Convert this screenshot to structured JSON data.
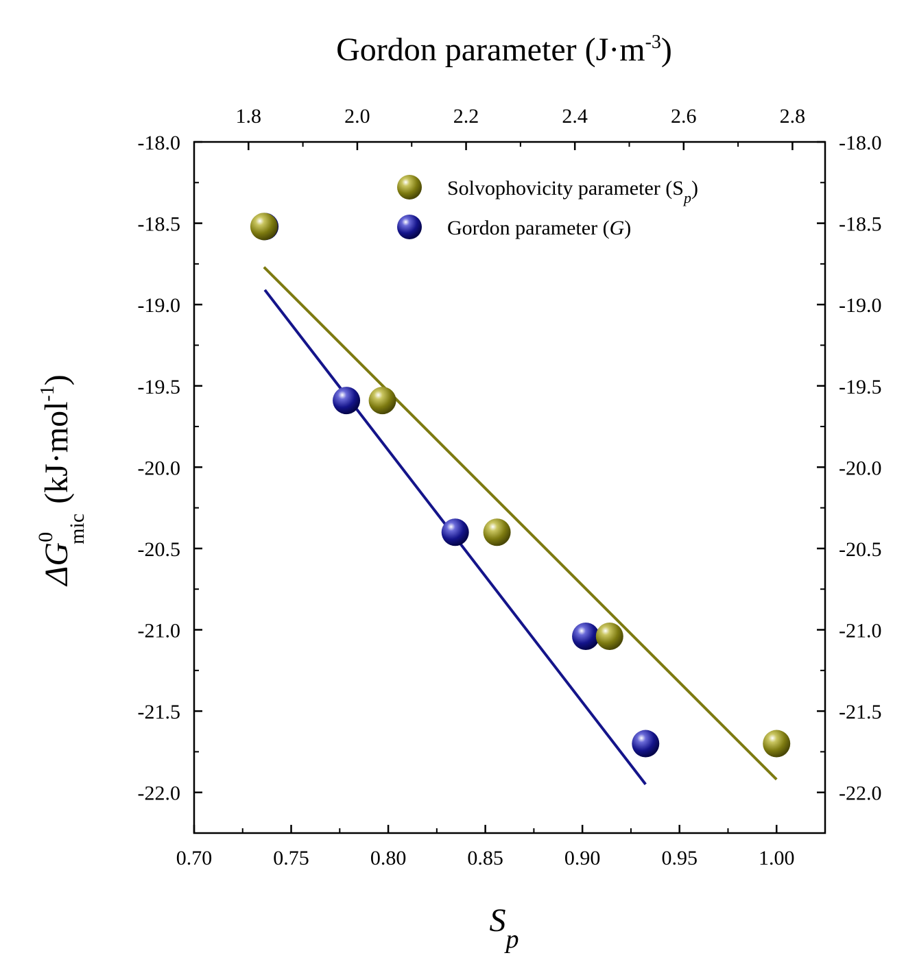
{
  "chart_data": {
    "type": "scatter",
    "title": "",
    "xlabel": "S",
    "xlabel_sub": "p",
    "x2label": "Gordon parameter (J·m",
    "x2label_sup": "-3",
    "x2label_end": ")",
    "ylabel_delta": "ΔG",
    "ylabel_sup": "0",
    "ylabel_sub": "mic",
    "ylabel_unit": "(kJ·mol",
    "ylabel_unit_sup": "-1",
    "ylabel_end": ")",
    "xlim": [
      0.7,
      1.025
    ],
    "x2lim": [
      1.7,
      2.86
    ],
    "ylim": [
      -22.25,
      -18.0
    ],
    "x_ticks": [
      "0.70",
      "0.75",
      "0.80",
      "0.85",
      "0.90",
      "0.95",
      "1.00"
    ],
    "x2_ticks": [
      "1.8",
      "2.0",
      "2.2",
      "2.4",
      "2.6",
      "2.8"
    ],
    "y_ticks": [
      "-18.0",
      "-18.5",
      "-19.0",
      "-19.5",
      "-20.0",
      "-20.5",
      "-21.0",
      "-21.5",
      "-22.0"
    ],
    "legend_position": "top-right",
    "series": [
      {
        "name": "Solvophovicity parameter (S",
        "name_sub": "p",
        "name_end": ")",
        "axis": "bottom",
        "color": "#7d7a10",
        "points": [
          {
            "x": 0.736,
            "y": -18.52
          },
          {
            "x": 0.797,
            "y": -19.59
          },
          {
            "x": 0.856,
            "y": -20.4
          },
          {
            "x": 0.914,
            "y": -21.04
          },
          {
            "x": 1.0,
            "y": -21.7
          }
        ],
        "fit": {
          "x": [
            0.736,
            1.0
          ],
          "y": [
            -18.77,
            -21.92
          ]
        }
      },
      {
        "name": "Gordon parameter (",
        "name_italic": "G",
        "name_end": ")",
        "axis": "top",
        "color": "#14148a",
        "points": [
          {
            "x": 1.83,
            "y": -18.52
          },
          {
            "x": 1.98,
            "y": -19.59
          },
          {
            "x": 2.18,
            "y": -20.4
          },
          {
            "x": 2.42,
            "y": -21.04
          },
          {
            "x": 2.53,
            "y": -21.7
          }
        ],
        "fit": {
          "x": [
            1.83,
            2.53
          ],
          "y": [
            -18.91,
            -21.95
          ]
        }
      }
    ]
  }
}
